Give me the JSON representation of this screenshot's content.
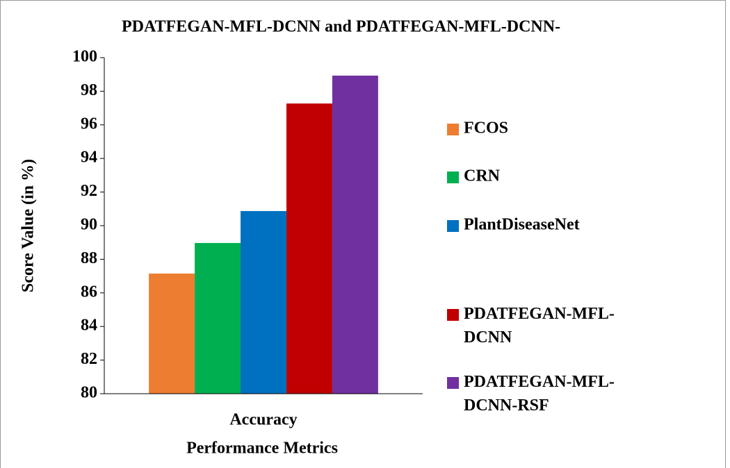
{
  "chart_data": {
    "type": "bar",
    "title": "PDATFEGAN-MFL-DCNN and PDATFEGAN-MFL-DCNN-",
    "xlabel": "Performance Metrics",
    "ylabel": "Score Value (in %)",
    "categories": [
      "Accuracy"
    ],
    "series": [
      {
        "name": "FCOS",
        "color": "#ed7d31",
        "values": [
          87.15
        ]
      },
      {
        "name": "CRN",
        "color": "#00b050",
        "values": [
          88.97
        ]
      },
      {
        "name": "PlantDiseaseNet",
        "color": "#0070c0",
        "values": [
          90.87
        ]
      },
      {
        "name": "PDATFEGAN-MFL-DCNN",
        "color": "#c00000",
        "values": [
          97.27
        ]
      },
      {
        "name": "PDATFEGAN-MFL-DCNN-RSF",
        "color": "#7030a0",
        "values": [
          98.93
        ]
      }
    ],
    "ylim": [
      80,
      100
    ],
    "yticks": [
      80,
      82,
      84,
      86,
      88,
      90,
      92,
      94,
      96,
      98,
      100
    ],
    "legend": "right"
  }
}
